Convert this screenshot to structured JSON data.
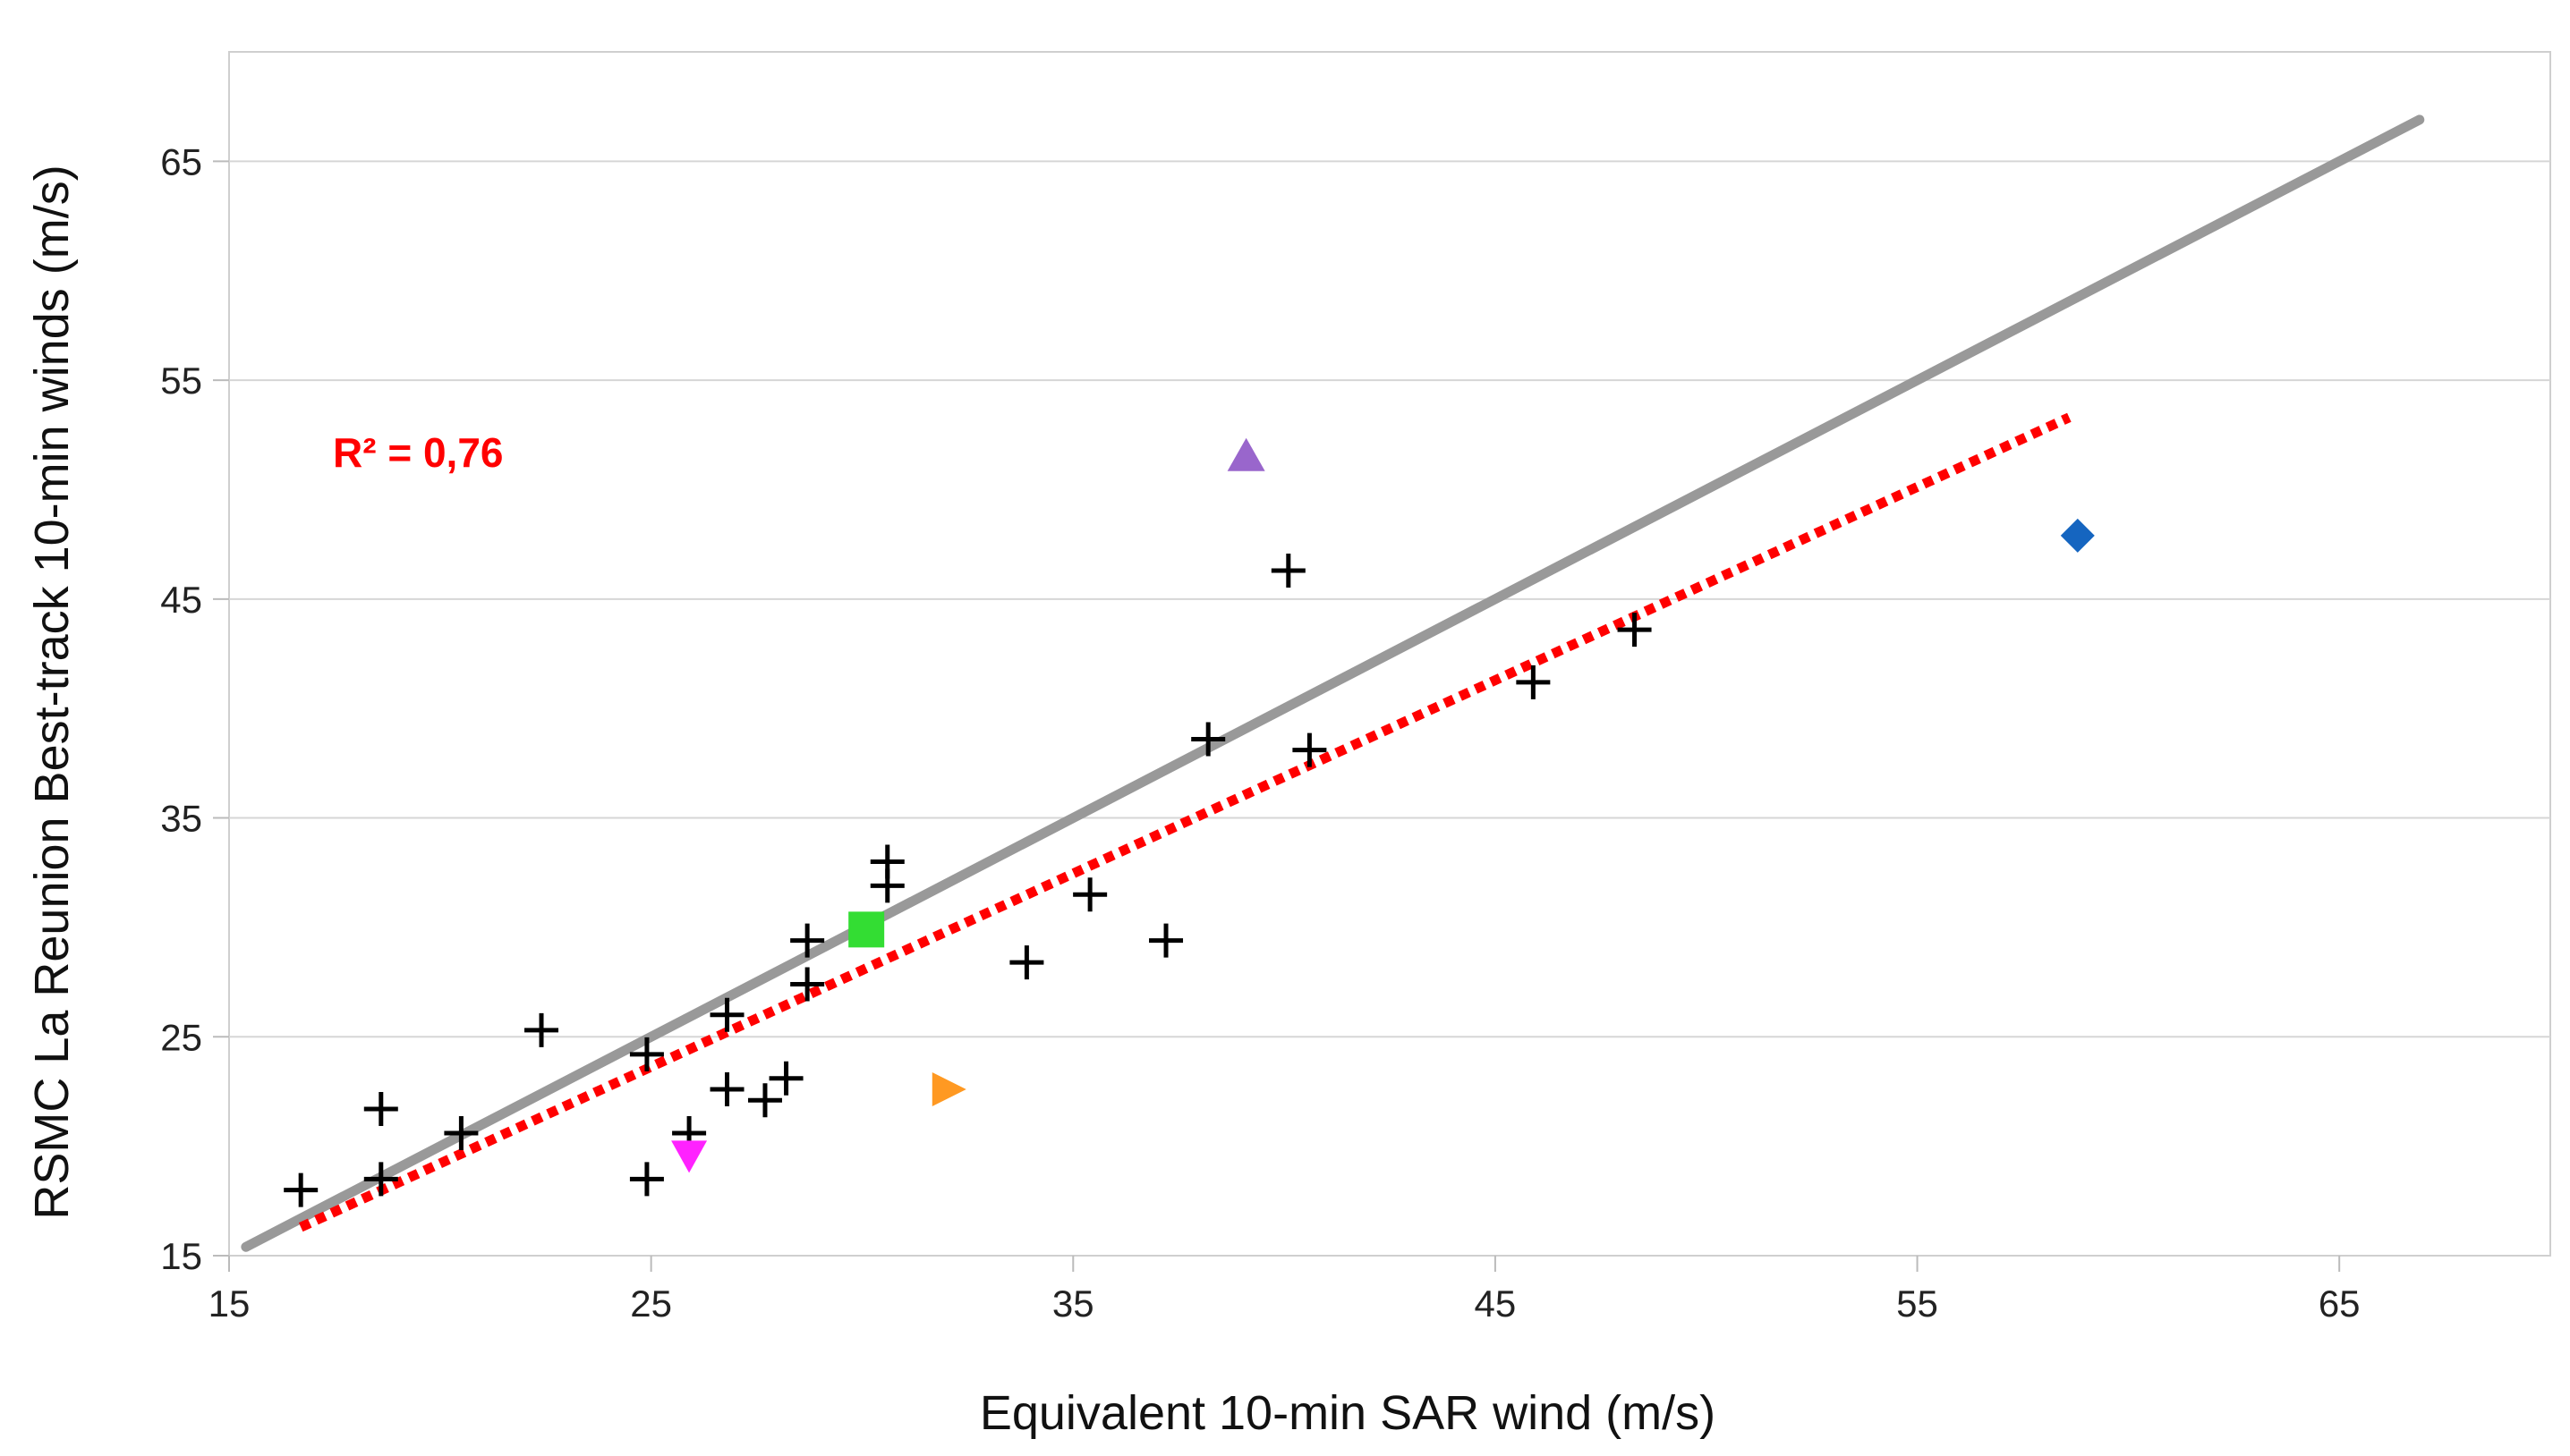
{
  "chart_data": {
    "type": "scatter",
    "xlabel": "Equivalent 10-min SAR wind (m/s)",
    "ylabel": "RSMC La Reunion Best-track 10-min winds (m/s)",
    "xlim": [
      15,
      70
    ],
    "ylim": [
      15,
      70
    ],
    "xticks": [
      "15",
      "25",
      "35",
      "45",
      "55",
      "65"
    ],
    "yticks": [
      "15",
      "25",
      "35",
      "45",
      "55",
      "65"
    ],
    "grid": "horizontal",
    "annotation": {
      "text": "R² = 0,76",
      "color": "#ff0000"
    },
    "colors": {
      "identity_line": "#999999",
      "fit_line": "#ff0000",
      "cross": "#000000",
      "triangle_up": "#9966cc",
      "diamond": "#1565c0",
      "square": "#33dd33",
      "triangle_right": "#ff9922",
      "triangle_down": "#ff22ff"
    },
    "series": [
      {
        "marker": "cross",
        "points": [
          [
            16.7,
            18.0
          ],
          [
            18.6,
            18.5
          ],
          [
            18.6,
            21.7
          ],
          [
            20.5,
            20.6
          ],
          [
            22.4,
            25.3
          ],
          [
            24.9,
            24.2
          ],
          [
            24.9,
            18.5
          ],
          [
            25.9,
            20.6
          ],
          [
            26.8,
            26.0
          ],
          [
            26.8,
            22.6
          ],
          [
            27.7,
            22.1
          ],
          [
            28.2,
            23.1
          ],
          [
            28.7,
            27.4
          ],
          [
            28.7,
            29.4
          ],
          [
            30.6,
            31.9
          ],
          [
            30.6,
            33.0
          ],
          [
            33.9,
            28.4
          ],
          [
            35.4,
            31.5
          ],
          [
            37.2,
            29.4
          ],
          [
            38.2,
            38.6
          ],
          [
            40.1,
            46.3
          ],
          [
            40.6,
            38.1
          ],
          [
            45.9,
            41.2
          ],
          [
            48.3,
            43.6
          ]
        ]
      },
      {
        "marker": "triangle_up",
        "points": [
          [
            39.1,
            51.5
          ]
        ]
      },
      {
        "marker": "diamond",
        "points": [
          [
            58.8,
            47.9
          ]
        ]
      },
      {
        "marker": "square",
        "points": [
          [
            30.1,
            29.9
          ]
        ]
      },
      {
        "marker": "triangle_right",
        "points": [
          [
            32.0,
            22.6
          ]
        ]
      },
      {
        "marker": "triangle_down",
        "points": [
          [
            25.9,
            19.6
          ]
        ]
      }
    ],
    "lines": [
      {
        "style": "solid",
        "x": [
          15.4,
          66.9
        ],
        "y": [
          15.4,
          66.9
        ]
      },
      {
        "style": "dotted",
        "x": [
          16.7,
          58.6
        ],
        "y": [
          16.3,
          53.3
        ]
      }
    ]
  }
}
